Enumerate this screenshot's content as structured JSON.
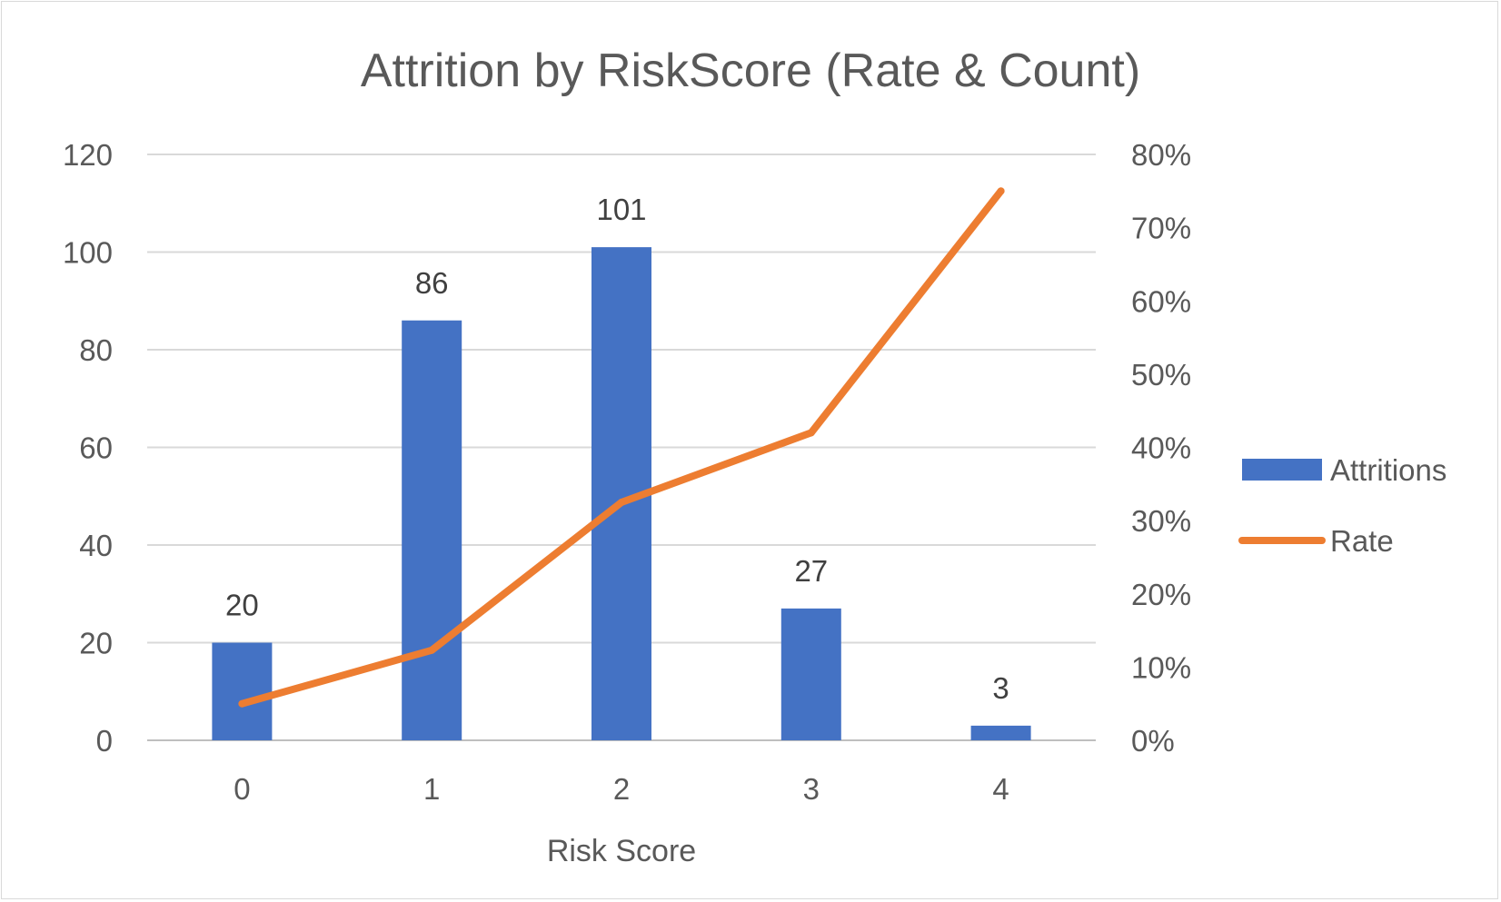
{
  "chart_data": {
    "type": "bar",
    "title": "Attrition by RiskScore (Rate & Count)",
    "xlabel": "Risk Score",
    "categories": [
      "0",
      "1",
      "2",
      "3",
      "4"
    ],
    "series": [
      {
        "name": "Attritions",
        "type": "bar",
        "axis": "left",
        "color": "#4472c4",
        "values": [
          20,
          86,
          101,
          27,
          3
        ],
        "data_labels": [
          "20",
          "86",
          "101",
          "27",
          "3"
        ]
      },
      {
        "name": "Rate",
        "type": "line",
        "axis": "right",
        "color": "#ed7d31",
        "values": [
          0.05,
          0.123,
          0.325,
          0.42,
          0.75
        ]
      }
    ],
    "y_left": {
      "ylim": [
        0,
        120
      ],
      "ticks": [
        "0",
        "20",
        "40",
        "60",
        "80",
        "100",
        "120"
      ]
    },
    "y_right": {
      "ylim": [
        0,
        0.8
      ],
      "ticks": [
        "0%",
        "10%",
        "20%",
        "30%",
        "40%",
        "50%",
        "60%",
        "70%",
        "80%"
      ]
    },
    "grid": true,
    "legend_position": "right"
  }
}
